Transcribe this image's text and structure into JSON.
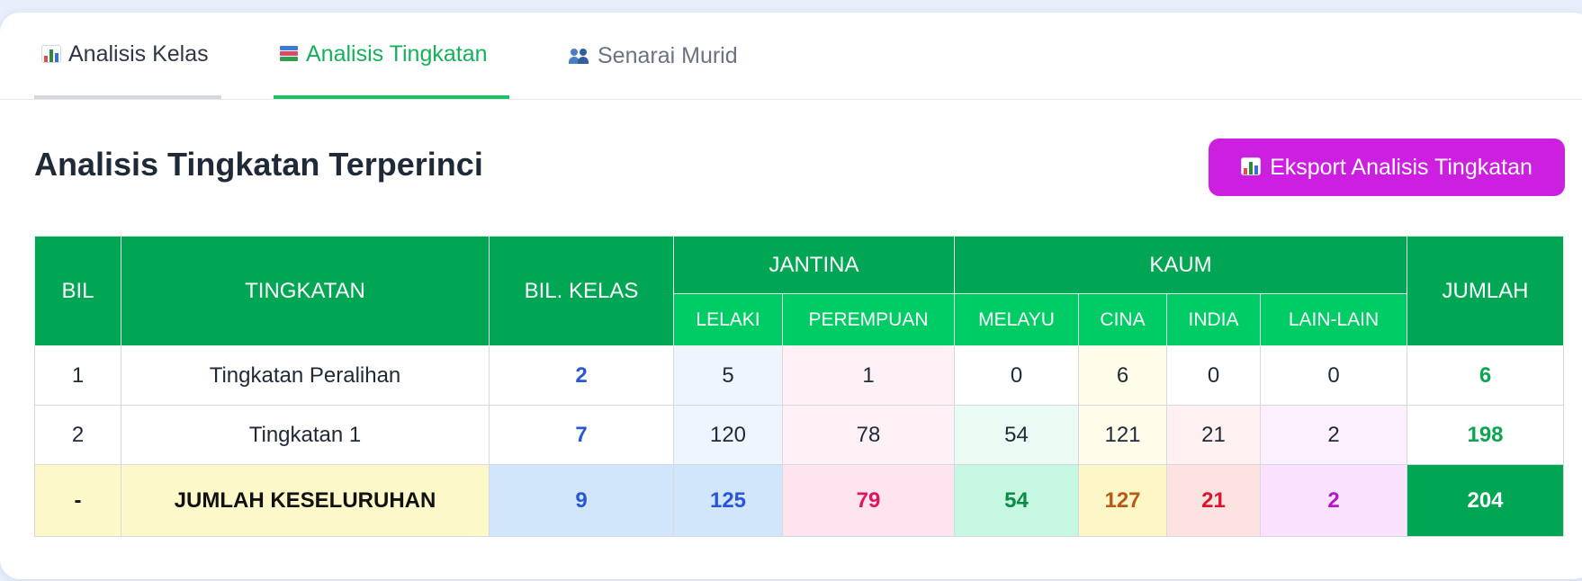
{
  "tabs": [
    {
      "label": "Analisis Kelas",
      "icon": "bar-chart-icon",
      "active": false
    },
    {
      "label": "Analisis Tingkatan",
      "icon": "books-icon",
      "active": true
    },
    {
      "label": "Senarai Murid",
      "icon": "people-icon",
      "active": false
    }
  ],
  "page": {
    "title": "Analisis Tingkatan Terperinci",
    "export_label": "Eksport Analisis Tingkatan"
  },
  "table": {
    "headers": {
      "bil": "BIL",
      "tingkatan": "TINGKATAN",
      "bil_kelas": "BIL. KELAS",
      "jantina": "JANTINA",
      "kaum": "KAUM",
      "jumlah": "JUMLAH",
      "lelaki": "LELAKI",
      "perempuan": "PEREMPUAN",
      "melayu": "MELAYU",
      "cina": "CINA",
      "india": "INDIA",
      "lain_lain": "LAIN-LAIN"
    },
    "rows": [
      {
        "bil": "1",
        "tingkatan": "Tingkatan Peralihan",
        "bil_kelas": "2",
        "lelaki": "5",
        "perempuan": "1",
        "melayu": "0",
        "cina": "6",
        "india": "0",
        "lain_lain": "0",
        "jumlah": "6"
      },
      {
        "bil": "2",
        "tingkatan": "Tingkatan 1",
        "bil_kelas": "7",
        "lelaki": "120",
        "perempuan": "78",
        "melayu": "54",
        "cina": "121",
        "india": "21",
        "lain_lain": "2",
        "jumlah": "198"
      }
    ],
    "total": {
      "bil": "-",
      "label": "JUMLAH KESELURUHAN",
      "bil_kelas": "9",
      "lelaki": "125",
      "perempuan": "79",
      "melayu": "54",
      "cina": "127",
      "india": "21",
      "lain_lain": "2",
      "jumlah": "204"
    }
  },
  "colors": {
    "header_green": "#00a653",
    "subheader_green": "#00cc66",
    "active_tab": "#16b05a",
    "export_button": "#cc1fe0"
  }
}
